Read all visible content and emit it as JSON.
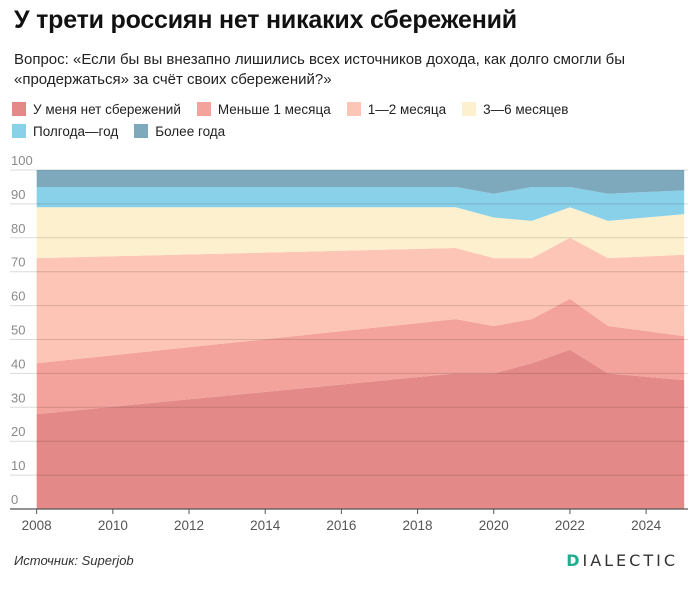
{
  "header": {
    "title": "У трети россиян нет никаких сбережений",
    "subtitle": "Вопрос: «Если бы вы внезапно лишились всех источников дохода, как долго смогли бы «продержаться» за счёт своих сбережений?»"
  },
  "footer": {
    "source_label": "Источник:",
    "source_name": "Superjob",
    "logo_first": "D",
    "logo_rest": "IALECTIC"
  },
  "chart_data": {
    "type": "area",
    "stacked": true,
    "x": [
      2008,
      2019,
      2020,
      2021,
      2022,
      2023,
      2025
    ],
    "xlim": [
      2007.3,
      2025.1
    ],
    "ylim": [
      0,
      100
    ],
    "yticks": [
      0,
      10,
      20,
      30,
      40,
      50,
      60,
      70,
      80,
      90,
      100
    ],
    "xticks": [
      2008,
      2010,
      2012,
      2014,
      2016,
      2018,
      2020,
      2022,
      2024
    ],
    "grid": true,
    "legend_position": "top",
    "series": [
      {
        "name": "У меня нет сбережений",
        "color": "#e38a88",
        "values": [
          28,
          40,
          40,
          43,
          47,
          40,
          38
        ]
      },
      {
        "name": "Меньше 1 месяца",
        "color": "#f3a39b",
        "values": [
          15,
          16,
          14,
          13,
          15,
          14,
          13
        ]
      },
      {
        "name": "1—2 месяца",
        "color": "#fdc5b6",
        "values": [
          31,
          21,
          20,
          18,
          18,
          20,
          24
        ]
      },
      {
        "name": "3—6 месяцев",
        "color": "#fdf0cf",
        "values": [
          15,
          12,
          12,
          11,
          9,
          11,
          12
        ]
      },
      {
        "name": "Полгода—год",
        "color": "#89d1e8",
        "values": [
          6,
          6,
          7,
          10,
          6,
          8,
          7
        ]
      },
      {
        "name": "Более года",
        "color": "#7ea9bd",
        "values": [
          5,
          5,
          7,
          5,
          5,
          7,
          6
        ]
      }
    ]
  }
}
